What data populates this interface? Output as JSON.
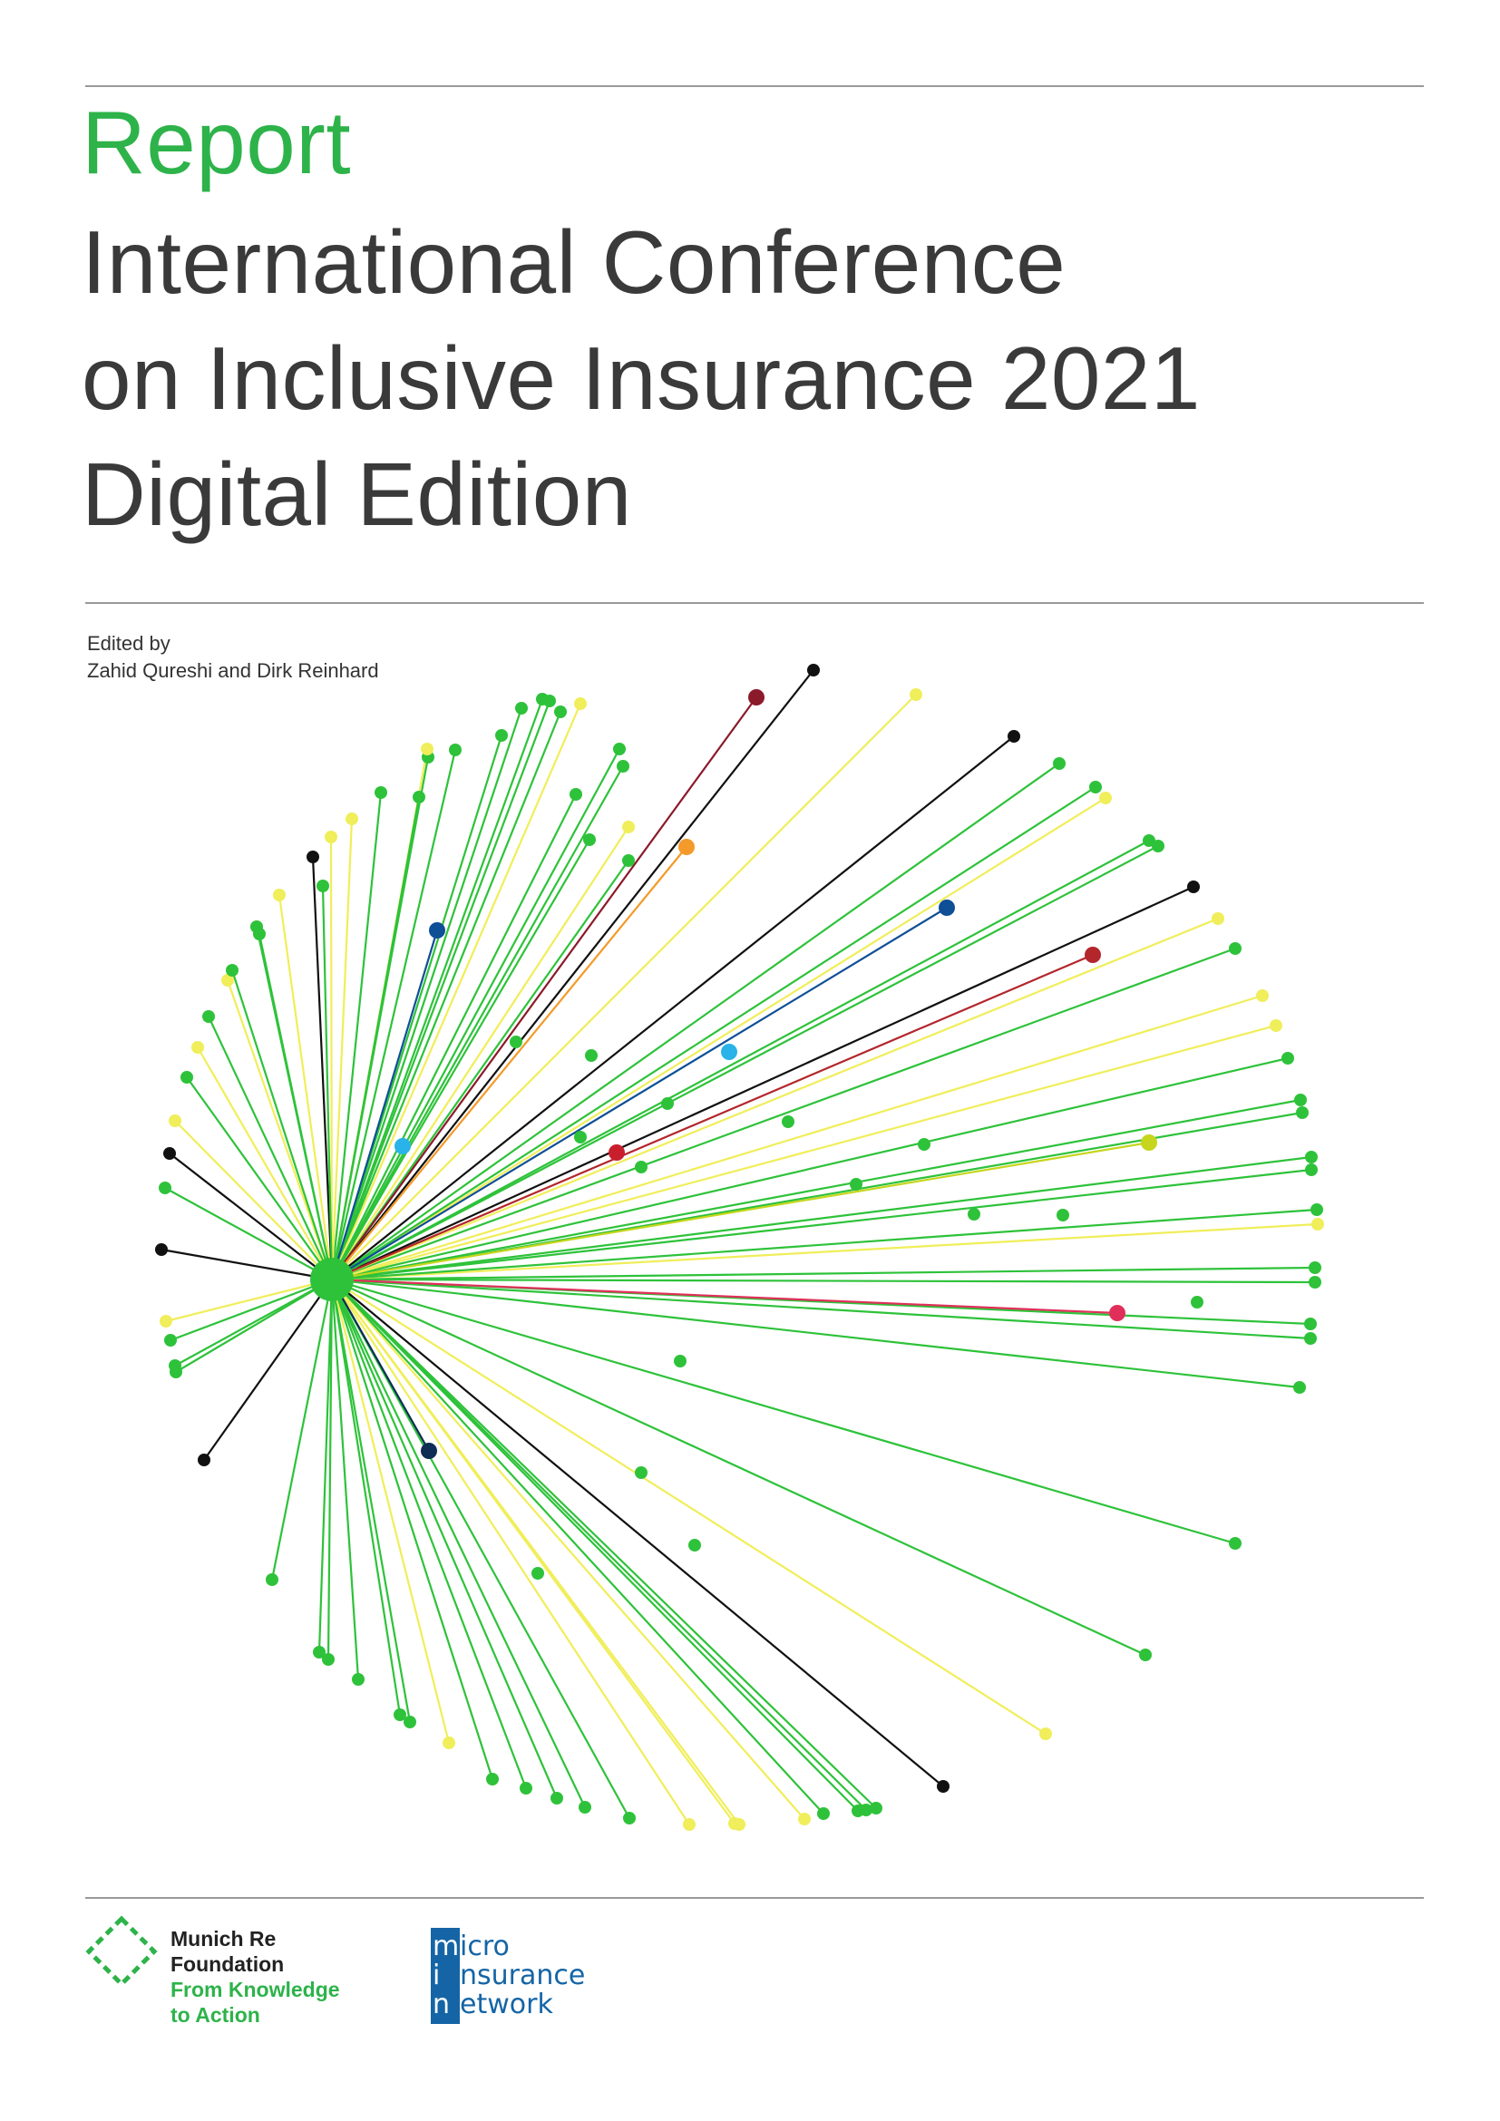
{
  "header": {
    "report_label": "Report",
    "title_lines": [
      "International Conference",
      "on Inclusive Insurance 2021",
      "Digital Edition"
    ]
  },
  "editors": {
    "label": "Edited by",
    "names": "Zahid Qureshi and Dirk Reinhard"
  },
  "colors": {
    "report_green": "#2db34a",
    "title_gray": "#3a3a3a",
    "network_green": "#2ec23a",
    "network_yellow": "#f0ee5a",
    "min_blue": "#1565a6"
  },
  "logos": {
    "munich_re": {
      "name_line1": "Munich Re",
      "name_line2": "Foundation",
      "tagline_line1": "From Knowledge",
      "tagline_line2": "to Action"
    },
    "microinsurance_network": {
      "initials": [
        "m",
        "i",
        "n"
      ],
      "rest": [
        "icro",
        "nsurance",
        "etwork"
      ]
    }
  }
}
